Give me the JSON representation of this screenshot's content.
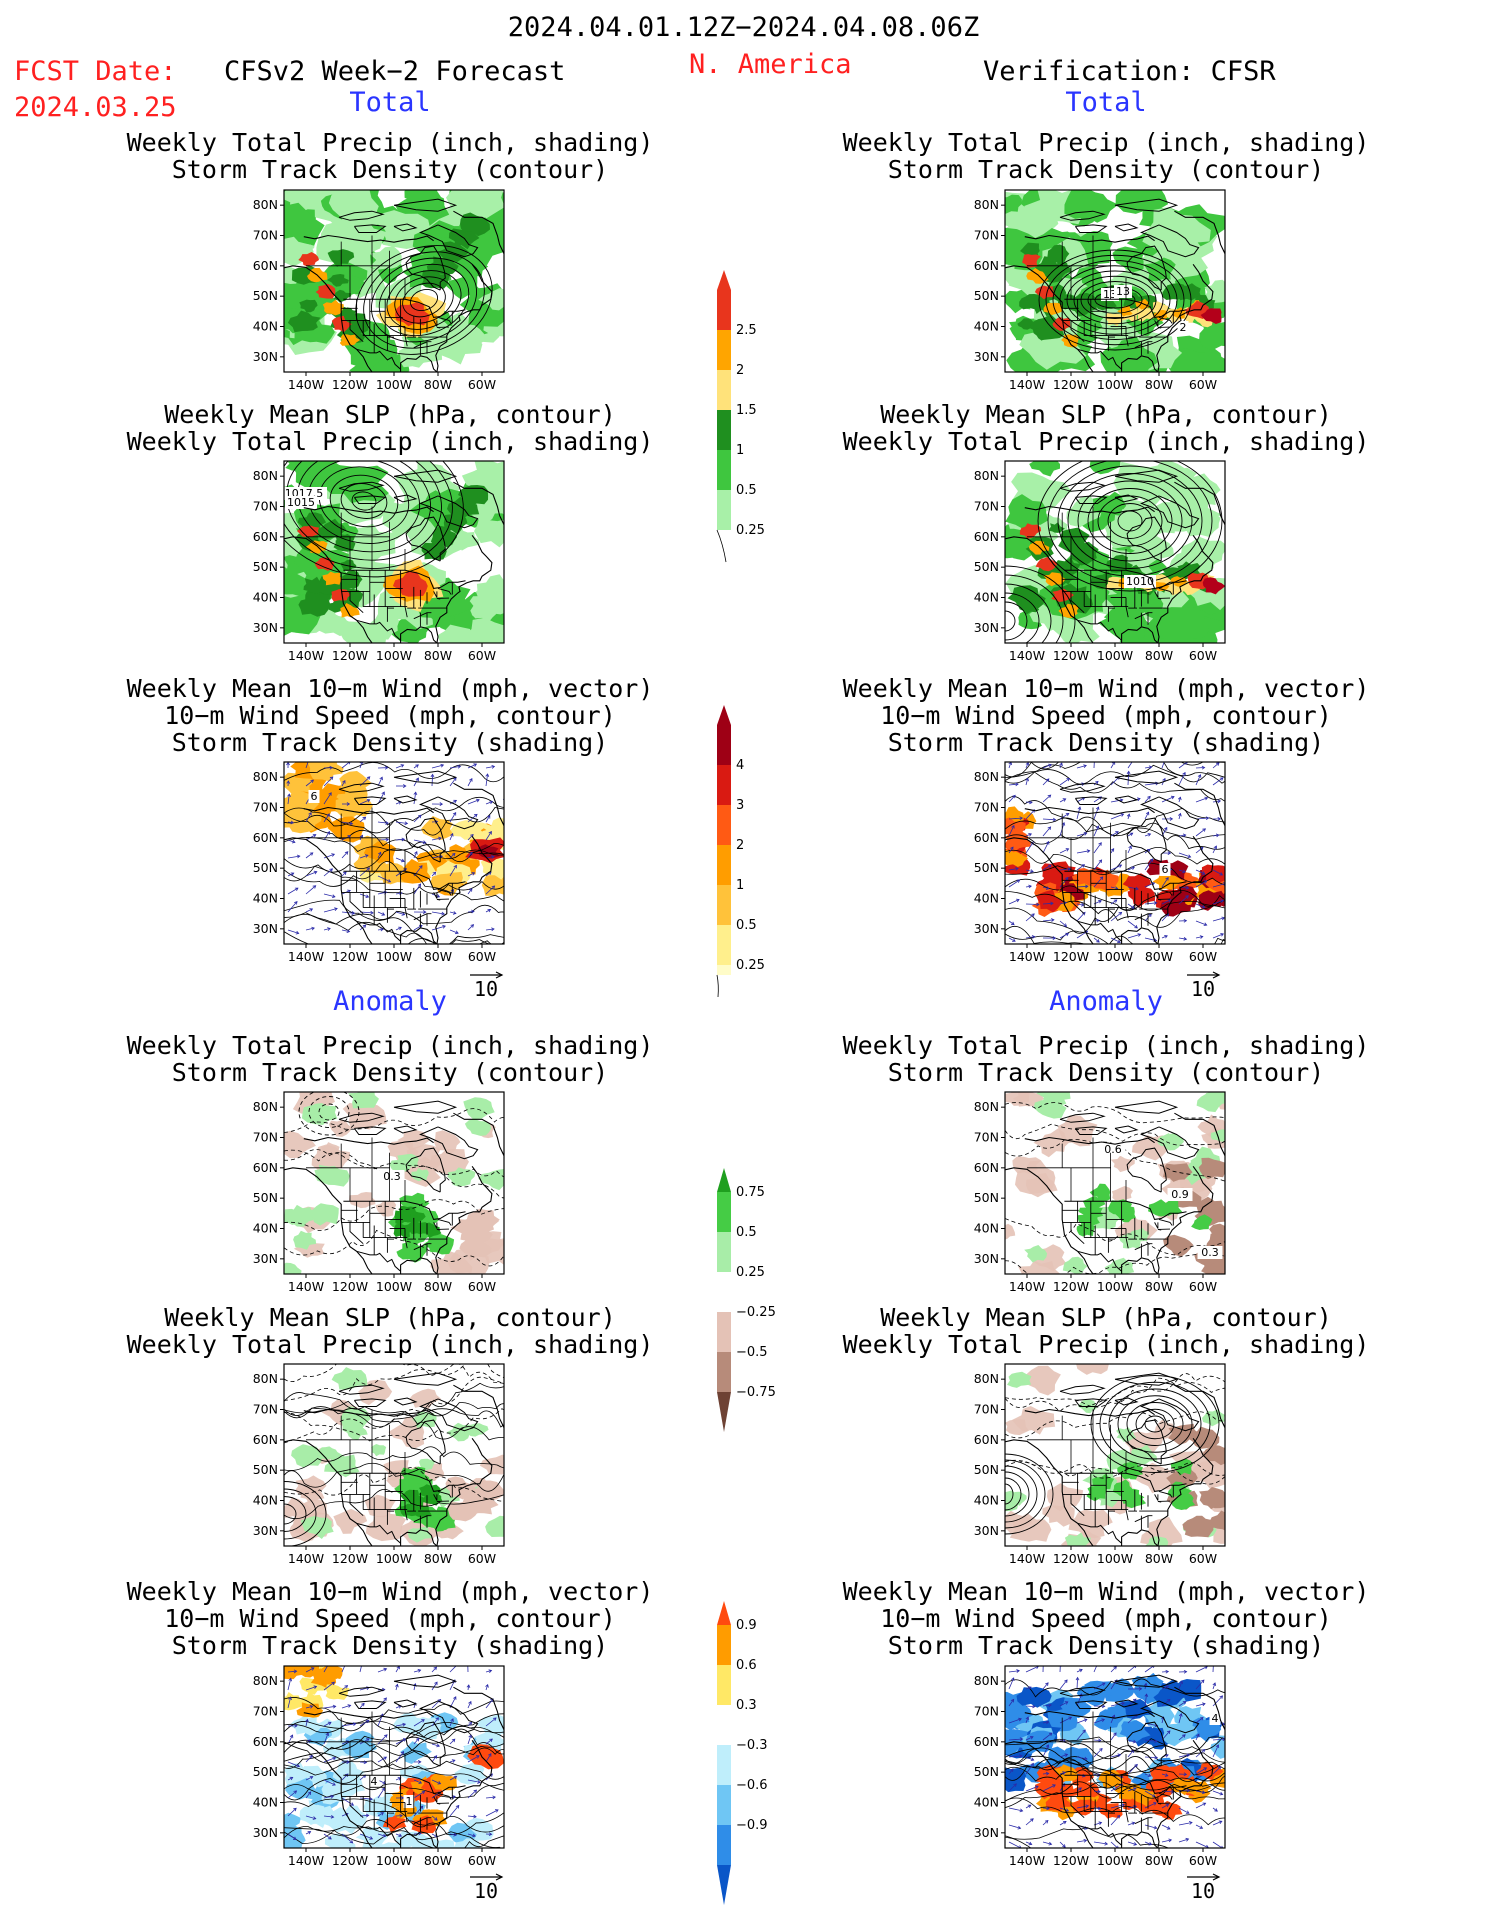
{
  "header": {
    "date_range": "2024.04.01.12Z−2024.04.08.06Z",
    "fcst_label": "FCST Date:",
    "fcst_date": "2024.03.25",
    "forecast_title": "CFSv2 Week−2 Forecast",
    "region": "N. America",
    "verification_title": "Verification: CFSR"
  },
  "sections": {
    "total": "Total",
    "anomaly": "Anomaly"
  },
  "panel_titles": {
    "precip_storm": [
      "Weekly Total Precip (inch, shading)",
      "Storm Track Density (contour)"
    ],
    "slp_precip": [
      "Weekly Mean SLP (hPa, contour)",
      "Weekly Total Precip (inch, shading)"
    ],
    "wind_storm": [
      "Weekly Mean 10−m Wind (mph, vector)",
      "10−m Wind Speed (mph, contour)",
      "Storm Track Density (shading)"
    ]
  },
  "axes": {
    "lat_labels": [
      "80N",
      "70N",
      "60N",
      "50N",
      "40N",
      "30N"
    ],
    "lon_labels": [
      "140W",
      "120W",
      "100W",
      "80W",
      "60W"
    ]
  },
  "vector_ref": "10",
  "colorbars": {
    "precip_total": {
      "labels": [
        "2.5",
        "2",
        "1.5",
        "1",
        "0.5",
        "0.25"
      ],
      "colors": [
        "#e8351d",
        "#ffa500",
        "#ffe27a",
        "#1f8f1f",
        "#3fc63f",
        "#a8f0a8"
      ]
    },
    "density_total": {
      "labels": [
        "4",
        "3",
        "2",
        "1",
        "0.5",
        "0.25"
      ],
      "colors": [
        "#9e0015",
        "#d91a12",
        "#ff5a14",
        "#ff9d00",
        "#ffc23a",
        "#ffef8c",
        "#fffcc8"
      ]
    },
    "precip_anom": {
      "labels": [
        "0.75",
        "0.5",
        "0.25",
        "−0.25",
        "−0.5",
        "−0.75"
      ],
      "colors": [
        "#1f9f1f",
        "#45cc45",
        "#a8eda8",
        "#ffffff",
        "#e4c2b6",
        "#b78b7a",
        "#6e4234"
      ]
    },
    "density_anom": {
      "labels": [
        "0.9",
        "0.6",
        "0.3",
        "−0.3",
        "−0.6",
        "−0.9"
      ],
      "colors": [
        "#ff4a0f",
        "#ff9c00",
        "#ffe866",
        "#ffffff",
        "#bfeefb",
        "#6fc6f4",
        "#2f8de8",
        "#0a56c8"
      ]
    }
  },
  "map_labels": {
    "lt_wind": "6",
    "rt_precip_a": "13",
    "rt_precip_b": "13",
    "rt_precip_c": "2",
    "lt_slp_a": "1017.5",
    "lt_slp_b": "1015",
    "rt_slp": "1010",
    "rt_wind": "6",
    "la_precip": "0.3",
    "ra_precip_a": "0.6",
    "ra_precip_b": "0.9",
    "ra_precip_c": "0.3",
    "la_wind_a": "4",
    "la_wind_b": "1",
    "ra_wind": "4"
  },
  "colors": {
    "red_text": "#ff2020",
    "blue_text": "#2a35ff"
  }
}
